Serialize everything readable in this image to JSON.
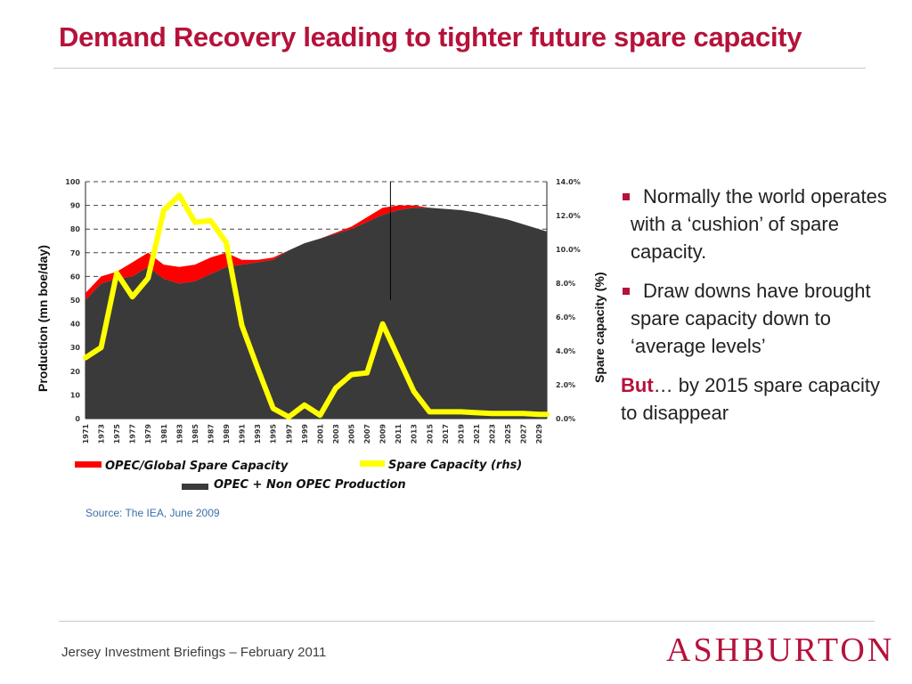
{
  "slide": {
    "title": "Demand Recovery leading to tighter future spare capacity",
    "source": "Source: The IEA, June 2009",
    "footer": "Jersey Investment Briefings – February 2011",
    "logo": "ASHBURTON",
    "bullets": [
      "Normally the world operates with a ‘cushion’ of spare capacity.",
      "Draw downs have brought spare capacity down to ‘average levels’"
    ],
    "but_word": "But",
    "but_rest": "… by 2015 spare capacity to disappear",
    "colors": {
      "accent": "#b5123a",
      "production": "#3a3a3a",
      "opec_spare": "#ff0000",
      "spare_rhs": "#ffff00"
    }
  },
  "chart_data": {
    "type": "area",
    "ylabel": "Production (mn boe/day)",
    "y2label": "Spare capacity  (%)",
    "ylim": [
      0,
      100
    ],
    "y2lim": [
      0,
      14
    ],
    "yticks": [
      "0",
      "10",
      "20",
      "30",
      "40",
      "50",
      "60",
      "70",
      "80",
      "90",
      "100"
    ],
    "y2ticks": [
      "0.0%",
      "2.0%",
      "4.0%",
      "6.0%",
      "8.0%",
      "10.0%",
      "12.0%",
      "14.0%"
    ],
    "x_tick_labels": [
      "1971",
      "1973",
      "1975",
      "1977",
      "1979",
      "1981",
      "1983",
      "1985",
      "1987",
      "1989",
      "1991",
      "1993",
      "1995",
      "1997",
      "1999",
      "2001",
      "2003",
      "2005",
      "2007",
      "2009",
      "2011",
      "2013",
      "2015",
      "2017",
      "2019",
      "2021",
      "2023",
      "2025",
      "2027",
      "2029"
    ],
    "legend": [
      {
        "name": "OPEC/Global Spare Capacity",
        "color": "#ff0000"
      },
      {
        "name": "Spare Capacity (rhs)",
        "color": "#ffff00"
      },
      {
        "name": "OPEC + Non OPEC Production",
        "color": "#3a3a3a"
      }
    ],
    "years": [
      1971,
      1973,
      1975,
      1977,
      1979,
      1981,
      1983,
      1985,
      1987,
      1989,
      1991,
      1993,
      1995,
      1997,
      1999,
      2001,
      2003,
      2005,
      2007,
      2009,
      2011,
      2013,
      2015,
      2017,
      2019,
      2021,
      2023,
      2025,
      2027,
      2029,
      2030
    ],
    "series": [
      {
        "name": "OPEC + Non OPEC Production",
        "values": [
          50,
          57,
          59,
          60,
          64,
          59,
          57,
          58,
          61,
          64,
          65,
          66,
          67,
          71,
          74,
          76,
          78,
          80,
          83,
          86,
          88,
          89,
          89,
          88.5,
          88,
          87,
          85.5,
          84,
          82,
          80,
          79
        ]
      },
      {
        "name": "OPEC/Global Spare Capacity",
        "values": [
          53,
          60,
          62,
          66,
          70,
          65,
          64,
          65,
          68,
          70,
          67,
          67,
          68,
          71,
          74,
          76,
          78.5,
          81,
          85,
          89,
          90,
          90,
          89,
          88.5,
          88,
          87,
          85.5,
          84,
          82,
          80,
          79
        ]
      },
      {
        "name": "Spare Capacity (rhs)",
        "values": [
          3.6,
          4.2,
          8.6,
          7.2,
          8.3,
          12.3,
          13.2,
          11.6,
          11.7,
          10.4,
          5.5,
          3.0,
          0.6,
          0.1,
          0.8,
          0.2,
          1.8,
          2.6,
          2.7,
          5.6,
          3.6,
          1.6,
          0.4,
          0.4,
          0.4,
          0.35,
          0.3,
          0.3,
          0.3,
          0.25,
          0.25
        ]
      }
    ]
  }
}
